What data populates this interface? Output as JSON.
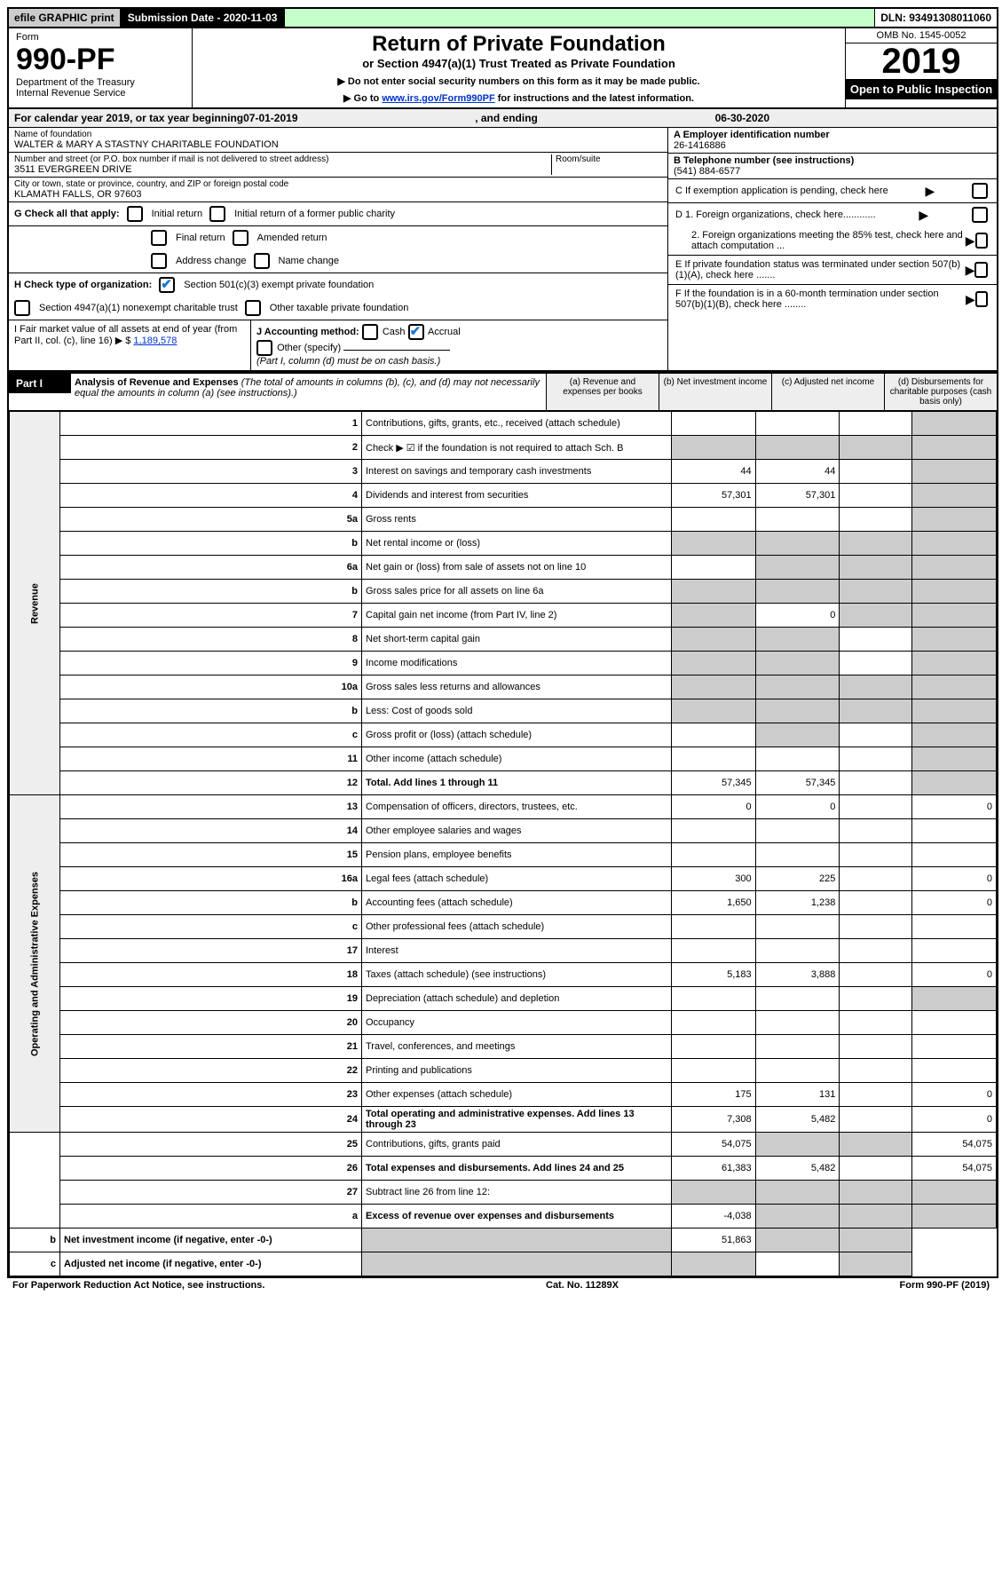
{
  "topbar": {
    "efile": "efile GRAPHIC print",
    "subdate_label": "Submission Date - 2020-11-03",
    "dln": "DLN: 93491308011060"
  },
  "header": {
    "form": "Form",
    "num": "990-PF",
    "dept": "Department of the Treasury",
    "irs": "Internal Revenue Service",
    "title": "Return of Private Foundation",
    "subtitle": "or Section 4947(a)(1) Trust Treated as Private Foundation",
    "line1": "▶ Do not enter social security numbers on this form as it may be made public.",
    "line2_pre": "▶ Go to ",
    "line2_link": "www.irs.gov/Form990PF",
    "line2_post": " for instructions and the latest information.",
    "omb": "OMB No. 1545-0052",
    "year": "2019",
    "open": "Open to Public Inspection"
  },
  "cal": {
    "pre": "For calendar year 2019, or tax year beginning ",
    "begin": "07-01-2019",
    "mid": " , and ending ",
    "end": "06-30-2020"
  },
  "entity": {
    "name_label": "Name of foundation",
    "name": "WALTER & MARY A STASTNY CHARITABLE FOUNDATION",
    "addr_label": "Number and street (or P.O. box number if mail is not delivered to street address)",
    "addr": "3511 EVERGREEN DRIVE",
    "room_label": "Room/suite",
    "city_label": "City or town, state or province, country, and ZIP or foreign postal code",
    "city": "KLAMATH FALLS, OR  97603",
    "ein_label": "A Employer identification number",
    "ein": "26-1416886",
    "tel_label": "B Telephone number (see instructions)",
    "tel": "(541) 884-6577",
    "c_label": "C If exemption application is pending, check here",
    "d1": "D 1. Foreign organizations, check here............",
    "d2": "2. Foreign organizations meeting the 85% test, check here and attach computation ...",
    "e": "E If private foundation status was terminated under section 507(b)(1)(A), check here .......",
    "f": "F If the foundation is in a 60-month termination under section 507(b)(1)(B), check here ........"
  },
  "g": {
    "label": "G Check all that apply:",
    "opts": [
      "Initial return",
      "Initial return of a former public charity",
      "Final return",
      "Amended return",
      "Address change",
      "Name change"
    ]
  },
  "h": {
    "label": "H Check type of organization:",
    "o1": "Section 501(c)(3) exempt private foundation",
    "o2": "Section 4947(a)(1) nonexempt charitable trust",
    "o3": "Other taxable private foundation"
  },
  "i": {
    "label": "I Fair market value of all assets at end of year (from Part II, col. (c), line 16) ▶ $",
    "val": "1,189,578"
  },
  "j": {
    "label": "J Accounting method:",
    "o1": "Cash",
    "o2": "Accrual",
    "o3": "Other (specify)",
    "note": "(Part I, column (d) must be on cash basis.)"
  },
  "part1": {
    "label": "Part I",
    "title": "Analysis of Revenue and Expenses",
    "note": "(The total of amounts in columns (b), (c), and (d) may not necessarily equal the amounts in column (a) (see instructions).)",
    "cols": {
      "a": "(a) Revenue and expenses per books",
      "b": "(b) Net investment income",
      "c": "(c) Adjusted net income",
      "d": "(d) Disbursements for charitable purposes (cash basis only)"
    }
  },
  "side": {
    "rev": "Revenue",
    "exp": "Operating and Administrative Expenses"
  },
  "rows": [
    {
      "n": "1",
      "d": "Contributions, gifts, grants, etc., received (attach schedule)",
      "a": "",
      "b": "",
      "c": "",
      "dd": "",
      "greyd": true
    },
    {
      "n": "2",
      "d": "Check ▶ ☑ if the foundation is not required to attach Sch. B",
      "a": "g",
      "b": "g",
      "c": "g",
      "dd": "g"
    },
    {
      "n": "3",
      "d": "Interest on savings and temporary cash investments",
      "a": "44",
      "b": "44",
      "c": "",
      "dd": "",
      "greyd": true
    },
    {
      "n": "4",
      "d": "Dividends and interest from securities",
      "a": "57,301",
      "b": "57,301",
      "c": "",
      "dd": "",
      "greyd": true
    },
    {
      "n": "5a",
      "d": "Gross rents",
      "a": "",
      "b": "",
      "c": "",
      "dd": "",
      "greyd": true
    },
    {
      "n": "b",
      "d": "Net rental income or (loss)",
      "a": "g",
      "b": "g",
      "c": "g",
      "dd": "g"
    },
    {
      "n": "6a",
      "d": "Net gain or (loss) from sale of assets not on line 10",
      "a": "",
      "b": "g",
      "c": "g",
      "dd": "g"
    },
    {
      "n": "b",
      "d": "Gross sales price for all assets on line 6a",
      "a": "g",
      "b": "g",
      "c": "g",
      "dd": "g"
    },
    {
      "n": "7",
      "d": "Capital gain net income (from Part IV, line 2)",
      "a": "g",
      "b": "0",
      "c": "g",
      "dd": "g"
    },
    {
      "n": "8",
      "d": "Net short-term capital gain",
      "a": "g",
      "b": "g",
      "c": "",
      "dd": "g"
    },
    {
      "n": "9",
      "d": "Income modifications",
      "a": "g",
      "b": "g",
      "c": "",
      "dd": "g"
    },
    {
      "n": "10a",
      "d": "Gross sales less returns and allowances",
      "a": "g",
      "b": "g",
      "c": "g",
      "dd": "g"
    },
    {
      "n": "b",
      "d": "Less: Cost of goods sold",
      "a": "g",
      "b": "g",
      "c": "g",
      "dd": "g"
    },
    {
      "n": "c",
      "d": "Gross profit or (loss) (attach schedule)",
      "a": "",
      "b": "g",
      "c": "",
      "dd": "g"
    },
    {
      "n": "11",
      "d": "Other income (attach schedule)",
      "a": "",
      "b": "",
      "c": "",
      "dd": "g"
    },
    {
      "n": "12",
      "d": "Total. Add lines 1 through 11",
      "a": "57,345",
      "b": "57,345",
      "c": "",
      "dd": "g",
      "bold": true
    },
    {
      "n": "13",
      "d": "Compensation of officers, directors, trustees, etc.",
      "a": "0",
      "b": "0",
      "c": "",
      "dd": "0"
    },
    {
      "n": "14",
      "d": "Other employee salaries and wages",
      "a": "",
      "b": "",
      "c": "",
      "dd": ""
    },
    {
      "n": "15",
      "d": "Pension plans, employee benefits",
      "a": "",
      "b": "",
      "c": "",
      "dd": ""
    },
    {
      "n": "16a",
      "d": "Legal fees (attach schedule)",
      "a": "300",
      "b": "225",
      "c": "",
      "dd": "0"
    },
    {
      "n": "b",
      "d": "Accounting fees (attach schedule)",
      "a": "1,650",
      "b": "1,238",
      "c": "",
      "dd": "0"
    },
    {
      "n": "c",
      "d": "Other professional fees (attach schedule)",
      "a": "",
      "b": "",
      "c": "",
      "dd": ""
    },
    {
      "n": "17",
      "d": "Interest",
      "a": "",
      "b": "",
      "c": "",
      "dd": ""
    },
    {
      "n": "18",
      "d": "Taxes (attach schedule) (see instructions)",
      "a": "5,183",
      "b": "3,888",
      "c": "",
      "dd": "0"
    },
    {
      "n": "19",
      "d": "Depreciation (attach schedule) and depletion",
      "a": "",
      "b": "",
      "c": "",
      "dd": "g"
    },
    {
      "n": "20",
      "d": "Occupancy",
      "a": "",
      "b": "",
      "c": "",
      "dd": ""
    },
    {
      "n": "21",
      "d": "Travel, conferences, and meetings",
      "a": "",
      "b": "",
      "c": "",
      "dd": ""
    },
    {
      "n": "22",
      "d": "Printing and publications",
      "a": "",
      "b": "",
      "c": "",
      "dd": ""
    },
    {
      "n": "23",
      "d": "Other expenses (attach schedule)",
      "a": "175",
      "b": "131",
      "c": "",
      "dd": "0"
    },
    {
      "n": "24",
      "d": "Total operating and administrative expenses. Add lines 13 through 23",
      "a": "7,308",
      "b": "5,482",
      "c": "",
      "dd": "0",
      "bold": true
    },
    {
      "n": "25",
      "d": "Contributions, gifts, grants paid",
      "a": "54,075",
      "b": "g",
      "c": "g",
      "dd": "54,075"
    },
    {
      "n": "26",
      "d": "Total expenses and disbursements. Add lines 24 and 25",
      "a": "61,383",
      "b": "5,482",
      "c": "",
      "dd": "54,075",
      "bold": true
    },
    {
      "n": "27",
      "d": "Subtract line 26 from line 12:",
      "a": "g",
      "b": "g",
      "c": "g",
      "dd": "g"
    },
    {
      "n": "a",
      "d": "Excess of revenue over expenses and disbursements",
      "a": "-4,038",
      "b": "g",
      "c": "g",
      "dd": "g",
      "bold": true
    },
    {
      "n": "b",
      "d": "Net investment income (if negative, enter -0-)",
      "a": "g",
      "b": "51,863",
      "c": "g",
      "dd": "g",
      "bold": true
    },
    {
      "n": "c",
      "d": "Adjusted net income (if negative, enter -0-)",
      "a": "g",
      "b": "g",
      "c": "",
      "dd": "g",
      "bold": true
    }
  ],
  "foot": {
    "left": "For Paperwork Reduction Act Notice, see instructions.",
    "mid": "Cat. No. 11289X",
    "right": "Form 990-PF (2019)"
  }
}
